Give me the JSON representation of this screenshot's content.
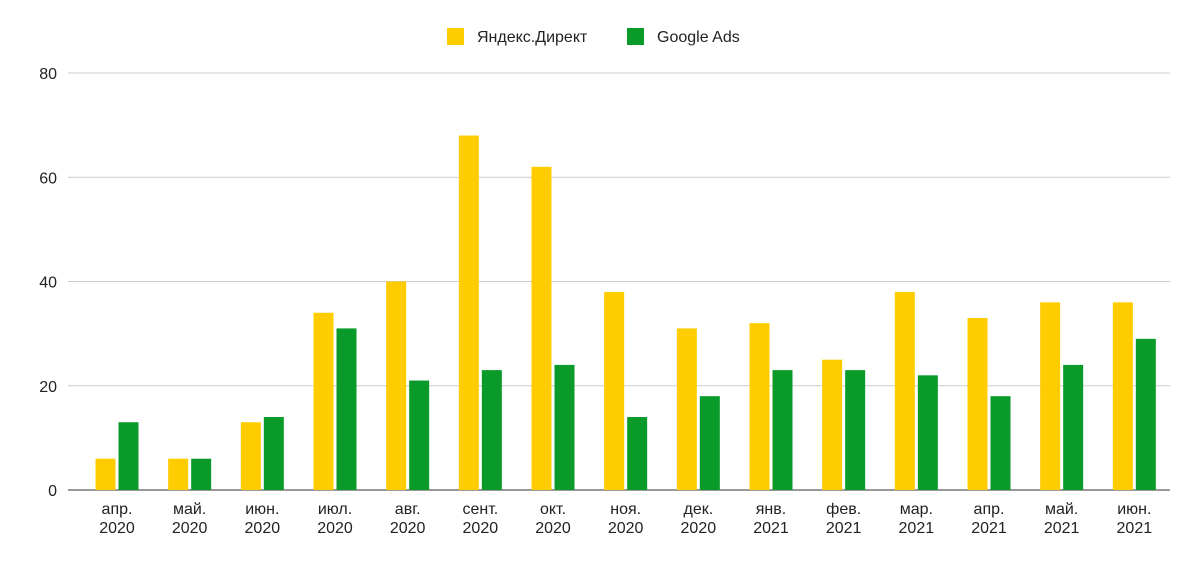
{
  "chart_data": {
    "type": "bar",
    "categories": [
      [
        "апр.",
        "2020"
      ],
      [
        "май.",
        "2020"
      ],
      [
        "июн.",
        "2020"
      ],
      [
        "июл.",
        "2020"
      ],
      [
        "авг.",
        "2020"
      ],
      [
        "сент.",
        "2020"
      ],
      [
        "окт.",
        "2020"
      ],
      [
        "ноя.",
        "2020"
      ],
      [
        "дек.",
        "2020"
      ],
      [
        "янв.",
        "2021"
      ],
      [
        "фев.",
        "2021"
      ],
      [
        "мар.",
        "2021"
      ],
      [
        "апр.",
        "2021"
      ],
      [
        "май.",
        "2021"
      ],
      [
        "июн.",
        "2021"
      ]
    ],
    "series": [
      {
        "name": "Яндекс.Директ",
        "color": "#FFCC00",
        "values": [
          6,
          6,
          13,
          34,
          40,
          68,
          62,
          38,
          31,
          32,
          25,
          38,
          33,
          36,
          36
        ]
      },
      {
        "name": "Google Ads",
        "color": "#0A9A2A",
        "values": [
          13,
          6,
          14,
          31,
          21,
          23,
          24,
          14,
          18,
          23,
          23,
          22,
          18,
          24,
          29
        ]
      }
    ],
    "ylim": [
      0,
      80
    ],
    "yticks": [
      "0",
      "20",
      "40",
      "60",
      "80"
    ],
    "grid": true,
    "legend_position": "top-center"
  }
}
